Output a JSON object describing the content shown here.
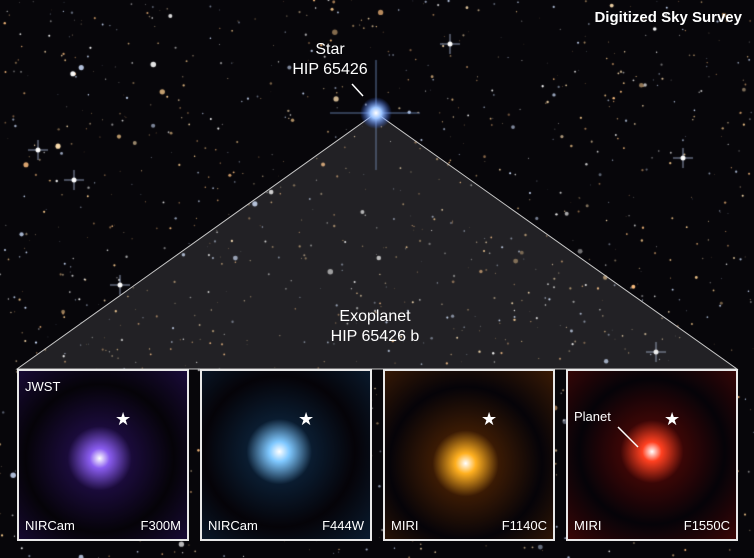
{
  "header": {
    "source": "Digitized Sky Survey"
  },
  "star_label": {
    "line1": "Star",
    "line2": "HIP 65426"
  },
  "exoplanet_label": {
    "line1": "Exoplanet",
    "line2": "HIP 65426 b"
  },
  "panels": [
    {
      "telescope": "JWST",
      "instrument": "NIRCam",
      "filter": "F300M",
      "color": "#8a5cf0",
      "bg": "#1a0b3a"
    },
    {
      "instrument": "NIRCam",
      "filter": "F444W",
      "color": "#7fc8ff",
      "bg": "#0a1c30"
    },
    {
      "instrument": "MIRI",
      "filter": "F1140C",
      "color": "#ffb020",
      "bg": "#3a1a04"
    },
    {
      "instrument": "MIRI",
      "filter": "F1550C",
      "filter_color": "",
      "color": "#ff4020",
      "bg": "#3a0606",
      "annotation": "Planet"
    }
  ],
  "icons": {
    "host_star_marker": "star-icon"
  }
}
